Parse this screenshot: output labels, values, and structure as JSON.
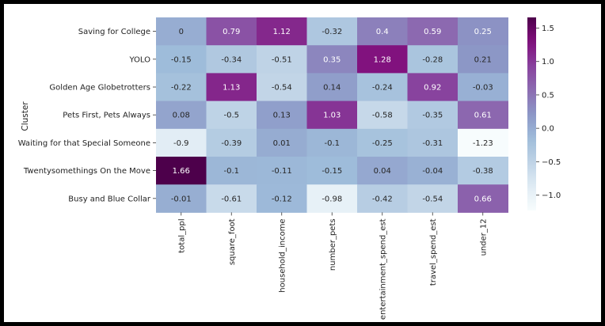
{
  "chart_data": {
    "type": "heatmap",
    "ylabel": "Cluster",
    "rows": [
      "Saving for College",
      "YOLO",
      "Golden Age Globetrotters",
      "Pets First, Pets Always",
      "Waiting for that Special Someone",
      "Twentysomethings On the Move",
      "Busy and Blue Collar"
    ],
    "columns": [
      "total_ppl",
      "square_foot",
      "household_income",
      "number_pets",
      "entertainment_spend_est",
      "travel_spend_est",
      "under_12"
    ],
    "values": [
      [
        0,
        0.79,
        1.12,
        -0.32,
        0.4,
        0.59,
        0.25
      ],
      [
        -0.15,
        -0.34,
        -0.51,
        0.35,
        1.28,
        -0.28,
        0.21
      ],
      [
        -0.22,
        1.13,
        -0.54,
        0.14,
        -0.24,
        0.92,
        -0.03
      ],
      [
        0.08,
        -0.5,
        0.13,
        1.03,
        -0.58,
        -0.35,
        0.61
      ],
      [
        -0.9,
        -0.39,
        0.01,
        -0.1,
        -0.25,
        -0.31,
        -1.23
      ],
      [
        1.66,
        -0.1,
        -0.11,
        -0.15,
        0.04,
        -0.04,
        -0.38
      ],
      [
        -0.01,
        -0.61,
        -0.12,
        -0.98,
        -0.42,
        -0.54,
        0.66
      ]
    ],
    "colormap": "BuPu",
    "vmin": -1.23,
    "vmax": 1.66,
    "colorbar_ticks": [
      {
        "value": 1.5,
        "label": "1.5"
      },
      {
        "value": 1.0,
        "label": "1.0"
      },
      {
        "value": 0.5,
        "label": "0.5"
      },
      {
        "value": 0.0,
        "label": "0.0"
      },
      {
        "value": -0.5,
        "label": "−0.5"
      },
      {
        "value": -1.0,
        "label": "−1.0"
      }
    ]
  }
}
